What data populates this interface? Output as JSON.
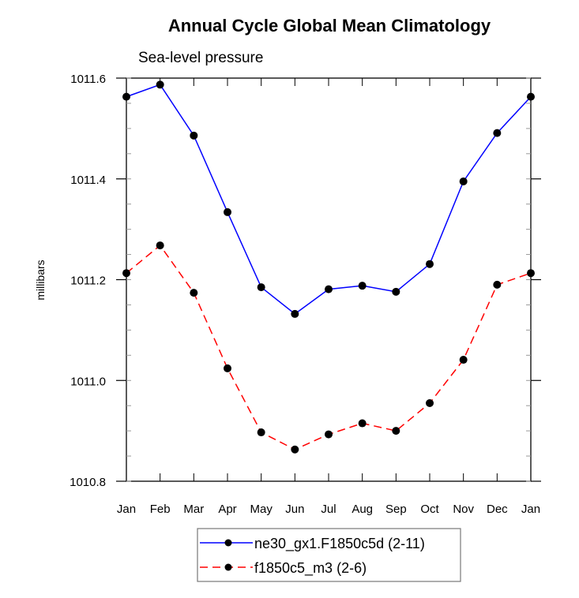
{
  "chart_data": {
    "type": "line",
    "title": "Annual Cycle Global Mean Climatology",
    "subtitle": "Sea-level pressure",
    "xlabel": "",
    "ylabel": "millibars",
    "categories": [
      "Jan",
      "Feb",
      "Mar",
      "Apr",
      "May",
      "Jun",
      "Jul",
      "Aug",
      "Sep",
      "Oct",
      "Nov",
      "Dec",
      "Jan"
    ],
    "ylim": [
      1010.8,
      1011.6
    ],
    "yticks": [
      1010.8,
      1011.0,
      1011.2,
      1011.4,
      1011.6
    ],
    "ytick_labels": [
      "1010.8",
      "1011.0",
      "1011.2",
      "1011.4",
      "1011.6"
    ],
    "y_minor_step": 0.05,
    "grid": false,
    "legend_position": "bottom-center",
    "series": [
      {
        "name": "ne30_gx1.F1850c5d (2-11)",
        "color": "#0000ff",
        "line_style": "solid",
        "marker": "filled-circle",
        "marker_color": "#000000",
        "values": [
          1011.563,
          1011.587,
          1011.486,
          1011.334,
          1011.185,
          1011.132,
          1011.181,
          1011.188,
          1011.176,
          1011.231,
          1011.395,
          1011.491,
          1011.563
        ]
      },
      {
        "name": "f1850c5_m3 (2-6)",
        "color": "#ff0000",
        "line_style": "dashed",
        "marker": "filled-circle",
        "marker_color": "#000000",
        "values": [
          1011.213,
          1011.268,
          1011.174,
          1011.024,
          1010.897,
          1010.863,
          1010.893,
          1010.915,
          1010.9,
          1010.955,
          1011.041,
          1011.19,
          1011.213
        ]
      }
    ]
  }
}
